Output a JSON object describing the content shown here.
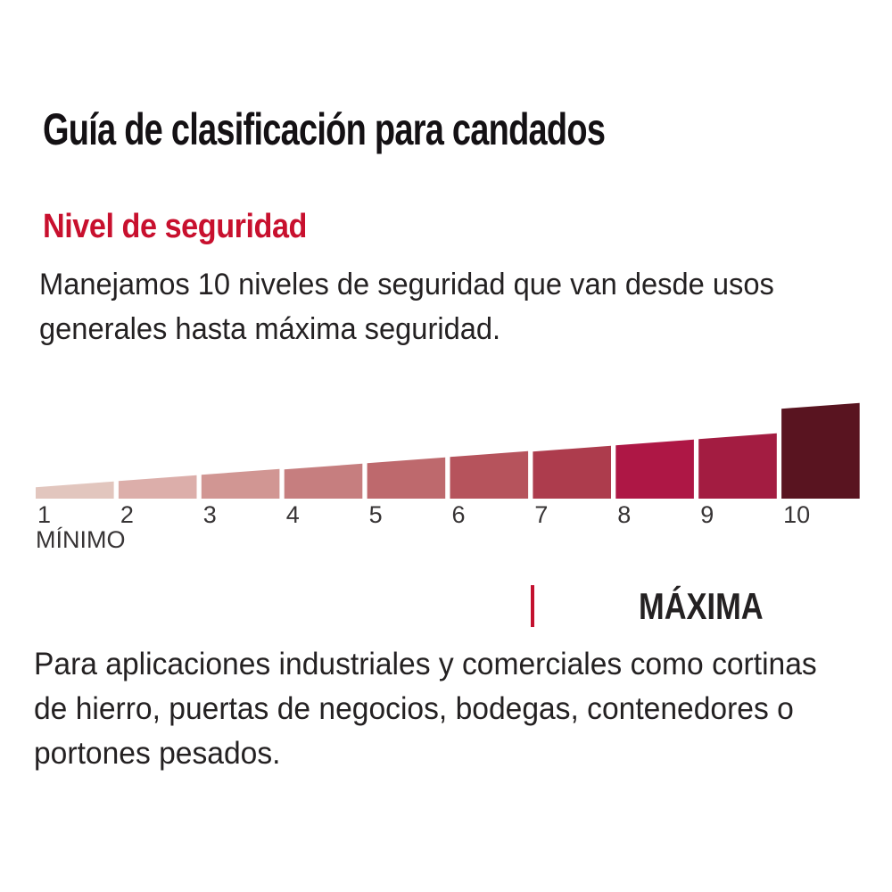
{
  "header": {
    "title": "Guía de clasificación para candados"
  },
  "section": {
    "title": "Nivel de seguridad",
    "title_color": "#c8102e",
    "intro_lines": [
      "Manejamos 10 niveles de seguridad que van desde usos",
      "generales hasta máxima seguridad."
    ],
    "description_lines": [
      "Para aplicaciones industriales y comerciales como cortinas",
      "de hierro, puertas de negocios, bodegas, contenedores o",
      "portones pesados."
    ]
  },
  "chart_data": {
    "type": "bar",
    "title": "",
    "categories": [
      "1",
      "2",
      "3",
      "4",
      "5",
      "6",
      "7",
      "8",
      "9",
      "10"
    ],
    "values": [
      16,
      23,
      30,
      36,
      43,
      50,
      56,
      63,
      70,
      104
    ],
    "values_note": "relative bar heights in px; levels 1-9 rise linearly as a sliced wedge, level 10 jumps to maximum",
    "colors": [
      "#e2c6be",
      "#dcaeaa",
      "#d19693",
      "#c67e7f",
      "#be696d",
      "#b6535c",
      "#ad3c4d",
      "#ae1745",
      "#a31c41",
      "#591420"
    ],
    "bar_shape": "trapezoid with top edge slanted upward left-to-right",
    "min_label": "MÍNIMO",
    "max_label": "MÁXIMA",
    "tick_color": "#c3112f",
    "label_color": "#373435",
    "xlabel": "",
    "ylabel": "",
    "grid": false,
    "legend_position": "none"
  }
}
